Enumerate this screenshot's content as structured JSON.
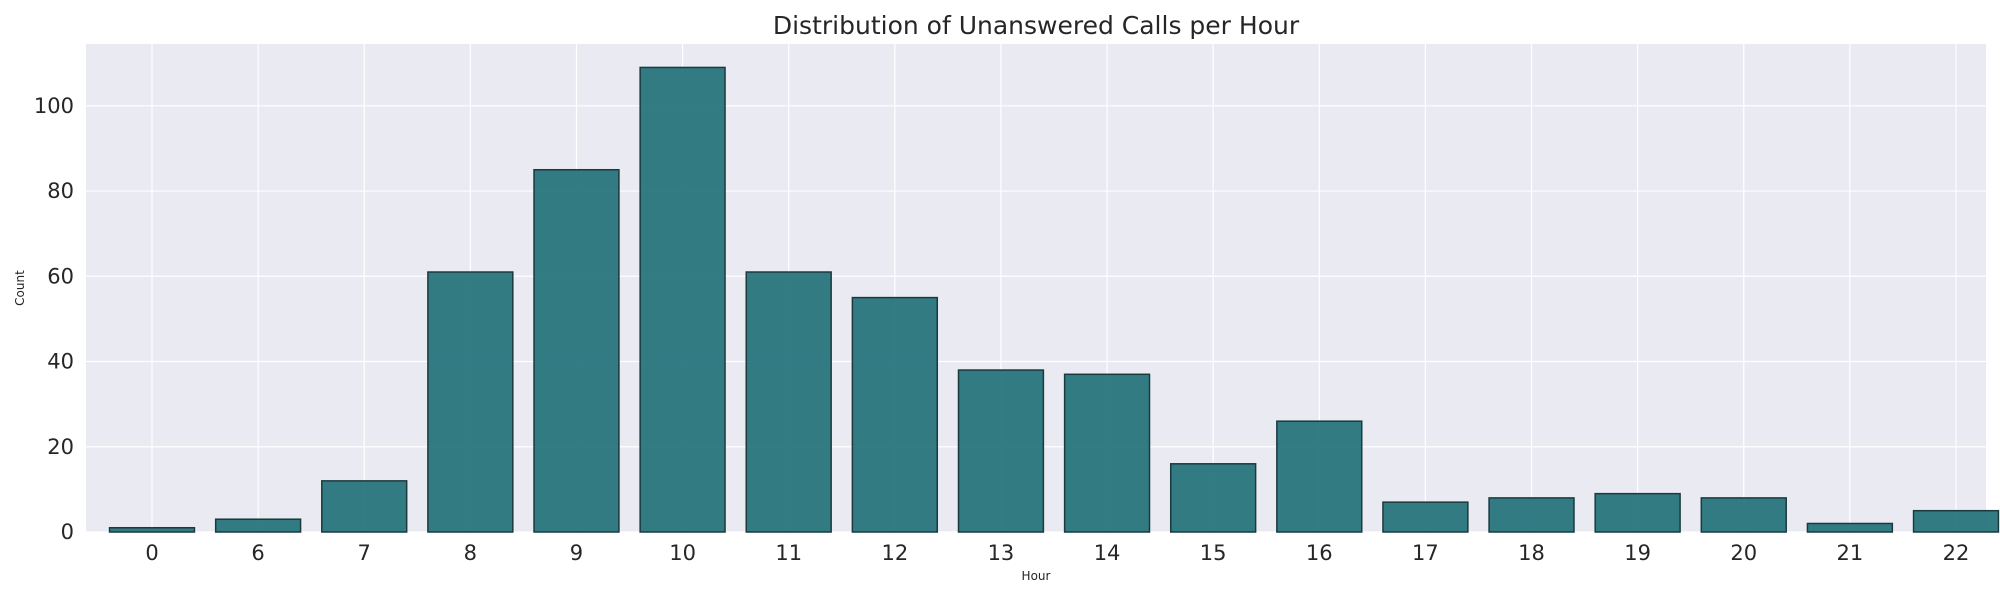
{
  "chart_data": {
    "type": "bar",
    "title": "Distribution of Unanswered Calls per Hour",
    "xlabel": "Hour",
    "ylabel": "Count",
    "categories": [
      "0",
      "6",
      "7",
      "8",
      "9",
      "10",
      "11",
      "12",
      "13",
      "14",
      "15",
      "16",
      "17",
      "18",
      "19",
      "20",
      "21",
      "22"
    ],
    "values": [
      1,
      3,
      12,
      61,
      85,
      109,
      61,
      55,
      38,
      37,
      16,
      26,
      7,
      8,
      9,
      8,
      2,
      5
    ],
    "ylim": [
      0,
      114.5
    ],
    "yticks": [
      "0",
      "20",
      "40",
      "60",
      "80",
      "100"
    ],
    "grid": true,
    "colors": {
      "bar_fill": "#22717a",
      "bar_edge": "#1a3a3d",
      "plot_background": "#eaeaf2",
      "grid": "#ffffff"
    }
  }
}
